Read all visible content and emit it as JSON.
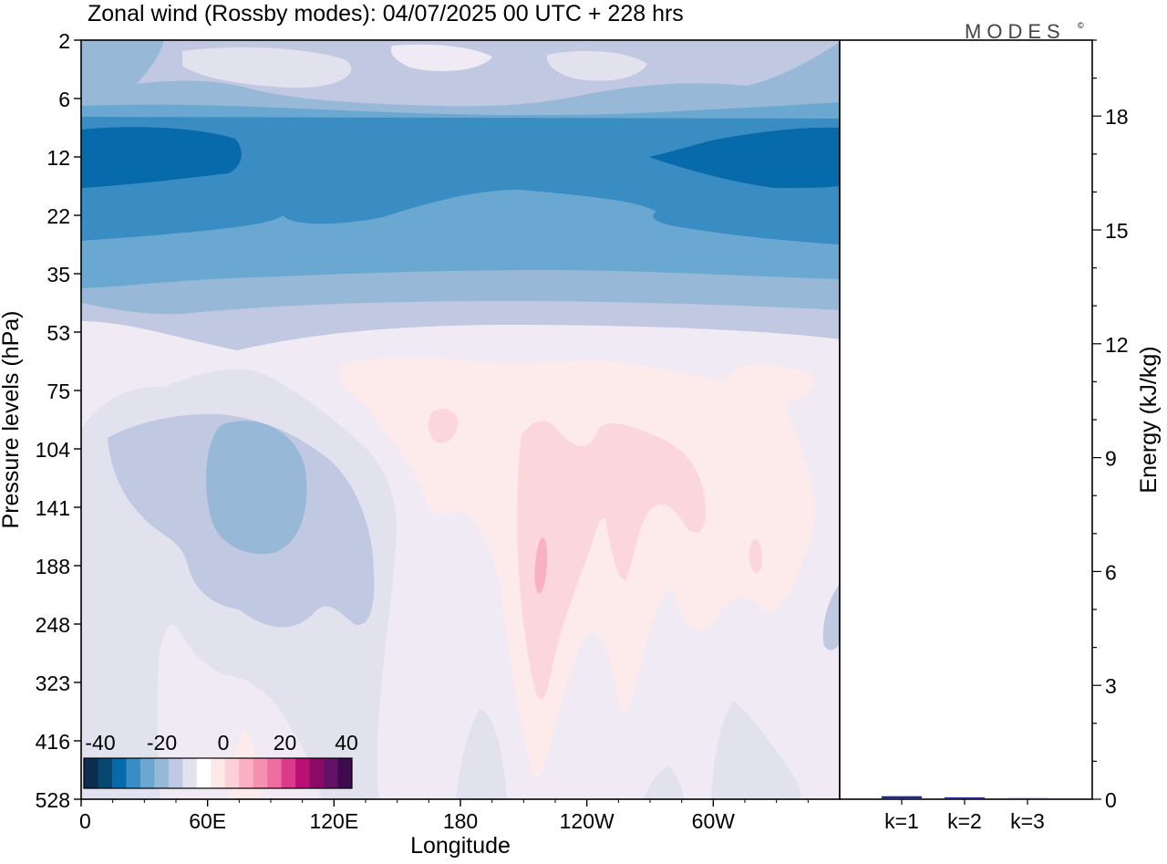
{
  "title": "Zonal wind (Rossby modes):  04/07/2025  00 UTC  + 228 hrs",
  "brand": "MODES",
  "brand_mark": "©",
  "chart_data": [
    {
      "type": "heatmap",
      "xlabel": "Longitude",
      "ylabel": "Pressure levels (hPa)",
      "x_ticks": [
        "0",
        "60E",
        "120E",
        "180",
        "120W",
        "60W"
      ],
      "y_ticks": [
        "2",
        "6",
        "12",
        "22",
        "35",
        "53",
        "75",
        "104",
        "141",
        "188",
        "248",
        "323",
        "416",
        "528"
      ],
      "colorbar": {
        "tick_labels": [
          "-40",
          "-20",
          "0",
          "20",
          "40"
        ],
        "colors": [
          "#0b2e4f",
          "#06466f",
          "#076aaa",
          "#3a8dc3",
          "#6aa8d1",
          "#98b8d8",
          "#c1c8e1",
          "#e2e2ef",
          "#ffffff",
          "#fde8e8",
          "#fbd0d6",
          "#f9b0c1",
          "#f690b0",
          "#ef6da1",
          "#dc3a8b",
          "#ba1074",
          "#8c0a67",
          "#641267",
          "#3e0c4e"
        ]
      },
      "levels": [
        "2",
        "6",
        "12",
        "22",
        "35",
        "53",
        "75",
        "104",
        "141",
        "188",
        "248",
        "323",
        "416",
        "528"
      ],
      "zonal_mean_wind_ms": [
        -13,
        -18,
        -32,
        -28,
        -20,
        -9,
        -3,
        -4,
        -4,
        -3,
        -3,
        -2,
        -2,
        -2
      ],
      "field_fill_colors": {
        "upper_bands": [
          "#c1c8e1",
          "#98b8d8",
          "#6aa8d1",
          "#3a8dc3",
          "#076aaa"
        ],
        "lower": [
          "#efeaf3",
          "#e2e2ef",
          "#c1c8e1",
          "#98b8d8",
          "#fcebea",
          "#fbd6da",
          "#f9b0c1"
        ]
      }
    },
    {
      "type": "bar",
      "ylabel": "Energy (kJ/kg)",
      "categories": [
        "k=1",
        "k=2",
        "k=3"
      ],
      "values": [
        0.08,
        0.05,
        0.02
      ],
      "ylim": [
        0,
        20
      ],
      "y_ticks": [
        "0",
        "3",
        "6",
        "9",
        "12",
        "15",
        "18"
      ],
      "bar_color": "#1f2a8a"
    }
  ]
}
